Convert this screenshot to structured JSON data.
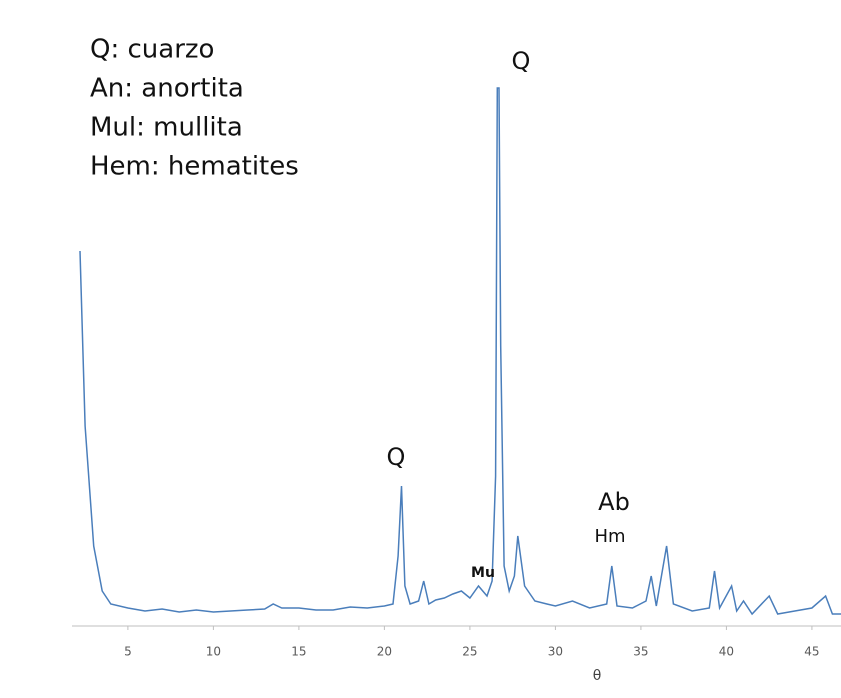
{
  "chart_data": {
    "type": "line",
    "notes": [
      "Q: cuarzo",
      "An: anortita",
      "Mul: mullita",
      "Hem: hematites"
    ],
    "annotations": [
      "Q",
      "Q",
      "Ab",
      "Hm",
      "Mu"
    ],
    "x_label": "θ",
    "xlim": [
      2.2,
      46.7
    ],
    "xticks": [
      5,
      10,
      15,
      20,
      25,
      30,
      35,
      40,
      45
    ],
    "ylim": [
      0,
      560
    ],
    "series": [
      {
        "color": "#4a7ebb",
        "x": [
          2.2,
          2.5,
          3,
          3.5,
          4,
          5,
          6,
          7,
          8,
          9,
          10,
          11,
          12,
          13,
          13.5,
          14,
          15,
          16,
          17,
          18,
          19,
          20,
          20.5,
          20.8,
          21,
          21.2,
          21.5,
          22,
          22.3,
          22.6,
          23,
          23.5,
          24,
          24.5,
          25,
          25.5,
          26,
          26.3,
          26.5,
          26.6,
          26.7,
          26.8,
          27,
          27.3,
          27.6,
          27.8,
          28.2,
          28.8,
          29.5,
          30,
          31,
          32,
          33,
          33.3,
          33.6,
          34.5,
          35.3,
          35.6,
          35.9,
          36.5,
          36.9,
          38,
          39,
          39.3,
          39.6,
          40.3,
          40.6,
          41,
          41.5,
          42.5,
          43,
          44,
          45,
          45.8,
          46.2,
          46.7
        ],
        "values": [
          375,
          200,
          80,
          35,
          22,
          18,
          15,
          17,
          14,
          16,
          14,
          15,
          16,
          17,
          22,
          18,
          18,
          16,
          16,
          19,
          18,
          20,
          22,
          70,
          140,
          40,
          22,
          25,
          45,
          22,
          26,
          28,
          32,
          35,
          28,
          40,
          30,
          45,
          150,
          538,
          538,
          280,
          60,
          35,
          50,
          90,
          40,
          25,
          22,
          20,
          25,
          18,
          22,
          60,
          20,
          18,
          25,
          50,
          20,
          80,
          22,
          15,
          18,
          55,
          18,
          40,
          15,
          25,
          12,
          30,
          12,
          15,
          18,
          30,
          12,
          12
        ]
      }
    ]
  }
}
